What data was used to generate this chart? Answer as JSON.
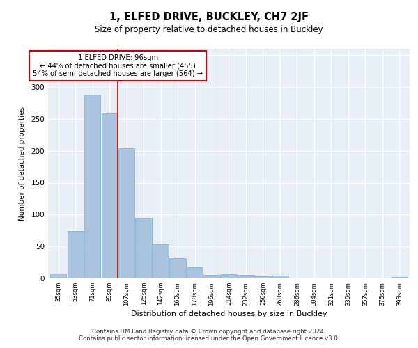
{
  "title1": "1, ELFED DRIVE, BUCKLEY, CH7 2JF",
  "title2": "Size of property relative to detached houses in Buckley",
  "xlabel": "Distribution of detached houses by size in Buckley",
  "ylabel": "Number of detached properties",
  "categories": [
    "35sqm",
    "53sqm",
    "71sqm",
    "89sqm",
    "107sqm",
    "125sqm",
    "142sqm",
    "160sqm",
    "178sqm",
    "196sqm",
    "214sqm",
    "232sqm",
    "250sqm",
    "268sqm",
    "286sqm",
    "304sqm",
    "321sqm",
    "339sqm",
    "357sqm",
    "375sqm",
    "393sqm"
  ],
  "values": [
    8,
    74,
    288,
    258,
    204,
    95,
    53,
    32,
    18,
    5,
    7,
    5,
    3,
    4,
    0,
    0,
    0,
    0,
    0,
    0,
    2
  ],
  "bar_color": "#aac4e0",
  "bar_edge_color": "#7aaed0",
  "vline_x": 3.5,
  "vline_color": "#cc0000",
  "annotation_line1": "1 ELFED DRIVE: 96sqm",
  "annotation_line2": "← 44% of detached houses are smaller (455)",
  "annotation_line3": "54% of semi-detached houses are larger (564) →",
  "annotation_box_color": "#ffffff",
  "annotation_box_edge": "#cc0000",
  "footer1": "Contains HM Land Registry data © Crown copyright and database right 2024.",
  "footer2": "Contains public sector information licensed under the Open Government Licence v3.0.",
  "background_color": "#e8eef5",
  "ylim": [
    0,
    360
  ],
  "yticks": [
    0,
    50,
    100,
    150,
    200,
    250,
    300,
    350
  ]
}
